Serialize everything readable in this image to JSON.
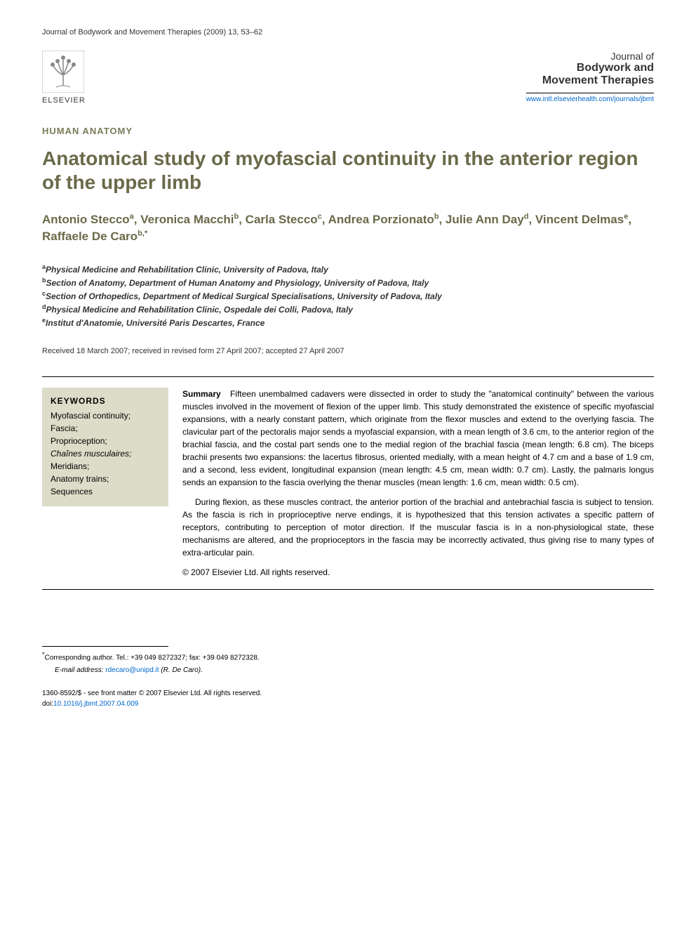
{
  "header": {
    "journal_ref": "Journal of Bodywork and Movement Therapies (2009) 13, 53–62",
    "publisher": "ELSEVIER",
    "journal_title_line1": "Journal of",
    "journal_title_line2": "Bodywork and",
    "journal_title_line3": "Movement Therapies",
    "journal_url": "www.intl.elsevierhealth.com/journals/jbmt"
  },
  "article": {
    "section_label": "HUMAN ANATOMY",
    "title": "Anatomical study of myofascial continuity in the anterior region of the upper limb",
    "authors_html": "Antonio Stecco<sup>a</sup>, Veronica Macchi<sup>b</sup>, Carla Stecco<sup>c</sup>, Andrea Porzionato<sup>b</sup>, Julie Ann Day<sup>d</sup>, Vincent Delmas<sup>e</sup>, Raffaele De Caro<sup>b,*</sup>",
    "affiliations": [
      {
        "sup": "a",
        "text": "Physical Medicine and Rehabilitation Clinic, University of Padova, Italy"
      },
      {
        "sup": "b",
        "text": "Section of Anatomy, Department of Human Anatomy and Physiology, University of Padova, Italy"
      },
      {
        "sup": "c",
        "text": "Section of Orthopedics, Department of Medical Surgical Specialisations, University of Padova, Italy"
      },
      {
        "sup": "d",
        "text": "Physical Medicine and Rehabilitation Clinic, Ospedale dei Colli, Padova, Italy"
      },
      {
        "sup": "e",
        "text": "Institut d'Anatomie, Université Paris Descartes, France"
      }
    ],
    "dates": "Received 18 March 2007; received in revised form 27 April 2007; accepted 27 April 2007"
  },
  "keywords": {
    "heading": "KEYWORDS",
    "items": "Myofascial continuity;\nFascia;\nProprioception;\nChaînes musculaires;\nMeridians;\nAnatomy trains;\nSequences"
  },
  "summary": {
    "label": "Summary",
    "para1": "Fifteen unembalmed cadavers were dissected in order to study the \"anatomical continuity\" between the various muscles involved in the movement of flexion of the upper limb. This study demonstrated the existence of specific myofascial expansions, with a nearly constant pattern, which originate from the flexor muscles and extend to the overlying fascia. The clavicular part of the pectoralis major sends a myofascial expansion, with a mean length of 3.6 cm, to the anterior region of the brachial fascia, and the costal part sends one to the medial region of the brachial fascia (mean length: 6.8 cm). The biceps brachii presents two expansions: the lacertus fibrosus, oriented medially, with a mean height of 4.7 cm and a base of 1.9 cm, and a second, less evident, longitudinal expansion (mean length: 4.5 cm, mean width: 0.7 cm). Lastly, the palmaris longus sends an expansion to the fascia overlying the thenar muscles (mean length: 1.6 cm, mean width: 0.5 cm).",
    "para2": "During flexion, as these muscles contract, the anterior portion of the brachial and antebrachial fascia is subject to tension. As the fascia is rich in proprioceptive nerve endings, it is hypothesized that this tension activates a specific pattern of receptors, contributing to perception of motor direction. If the muscular fascia is in a non-physiological state, these mechanisms are altered, and the proprioceptors in the fascia may be incorrectly activated, thus giving rise to many types of extra-articular pain.",
    "copyright": "© 2007 Elsevier Ltd. All rights reserved."
  },
  "footnote": {
    "corresponding": "Corresponding author. Tel.: +39 049 8272327; fax: +39 049 8272328.",
    "email_label": "E-mail address:",
    "email": "rdecaro@unipd.it",
    "email_name": "(R. De Caro)."
  },
  "footer": {
    "issn": "1360-8592/$ - see front matter © 2007 Elsevier Ltd. All rights reserved.",
    "doi_label": "doi:",
    "doi": "10.1016/j.jbmt.2007.04.009"
  },
  "colors": {
    "olive": "#6a6a4a",
    "olive_light": "#7a7a5a",
    "keywords_bg": "#dcdcc8",
    "link": "#0066cc",
    "text": "#333333"
  }
}
